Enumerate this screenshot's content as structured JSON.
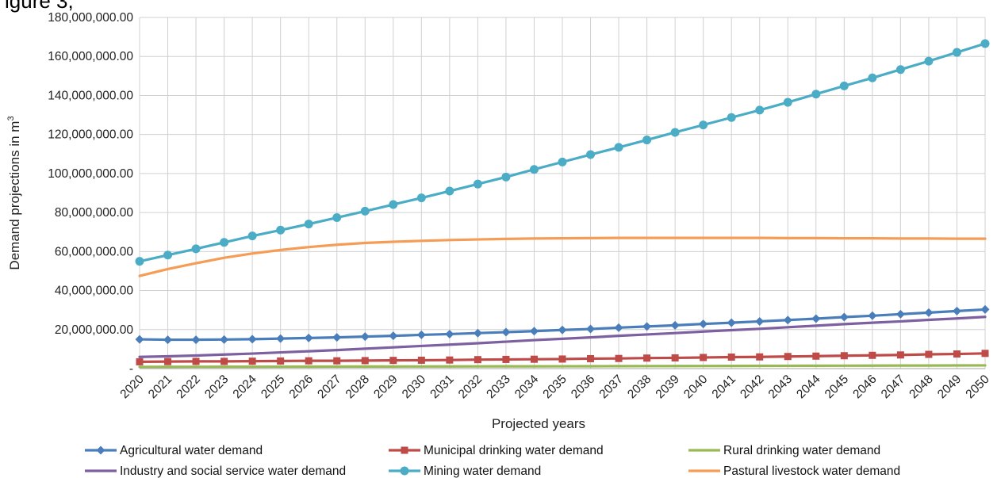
{
  "partial_title": "igure 3,",
  "chart_data": {
    "type": "line",
    "xlabel": "Projected years",
    "ylabel": "Demand projections in m³",
    "ylim": [
      0,
      180000000
    ],
    "y_ticks": [
      {
        "value": 0,
        "label": "-"
      },
      {
        "value": 20000000,
        "label": "20,000,000.00"
      },
      {
        "value": 40000000,
        "label": "40,000,000.00"
      },
      {
        "value": 60000000,
        "label": "60,000,000.00"
      },
      {
        "value": 80000000,
        "label": "80,000,000.00"
      },
      {
        "value": 100000000,
        "label": "100,000,000.00"
      },
      {
        "value": 120000000,
        "label": "120,000,000.00"
      },
      {
        "value": 140000000,
        "label": "140,000,000.00"
      },
      {
        "value": 160000000,
        "label": "160,000,000.00"
      },
      {
        "value": 180000000,
        "label": "180,000,000.00"
      }
    ],
    "grid": true,
    "legend_position": "bottom",
    "x": [
      2020,
      2021,
      2022,
      2023,
      2024,
      2025,
      2026,
      2027,
      2028,
      2029,
      2030,
      2031,
      2032,
      2033,
      2034,
      2035,
      2036,
      2037,
      2038,
      2039,
      2040,
      2041,
      2042,
      2043,
      2044,
      2045,
      2046,
      2047,
      2048,
      2049,
      2050
    ],
    "series": [
      {
        "name": "Agricultural water demand",
        "color": "#4a7ebb",
        "marker": "diamond",
        "values": [
          15000000,
          14800000,
          14800000,
          14900000,
          15100000,
          15400000,
          15700000,
          16000000,
          16400000,
          16800000,
          17300000,
          17700000,
          18200000,
          18700000,
          19200000,
          19800000,
          20300000,
          21000000,
          21600000,
          22200000,
          22900000,
          23500000,
          24200000,
          24900000,
          25600000,
          26400000,
          27100000,
          27900000,
          28700000,
          29500000,
          30300000
        ]
      },
      {
        "name": "Municipal drinking water demand",
        "color": "#be4b48",
        "marker": "square",
        "values": [
          3500000,
          3600000,
          3700000,
          3700000,
          3800000,
          3900000,
          4000000,
          4000000,
          4100000,
          4200000,
          4300000,
          4400000,
          4600000,
          4700000,
          4800000,
          4900000,
          5100000,
          5200000,
          5400000,
          5500000,
          5700000,
          5900000,
          6000000,
          6200000,
          6400000,
          6600000,
          6800000,
          7000000,
          7300000,
          7500000,
          7800000
        ]
      },
      {
        "name": "Rural drinking water demand",
        "color": "#98b954",
        "marker": "none",
        "values": [
          900000,
          920000,
          940000,
          960000,
          980000,
          1000000,
          1020000,
          1040000,
          1060000,
          1080000,
          1100000,
          1120000,
          1140000,
          1160000,
          1180000,
          1200000,
          1230000,
          1260000,
          1290000,
          1320000,
          1350000,
          1380000,
          1410000,
          1440000,
          1470000,
          1500000,
          1530000,
          1560000,
          1590000,
          1620000,
          1650000
        ]
      },
      {
        "name": "Industry and social service water demand",
        "color": "#7d60a0",
        "marker": "none",
        "values": [
          6000000,
          6300000,
          6700000,
          7200000,
          7700000,
          8300000,
          8900000,
          9500000,
          10200000,
          10900000,
          11600000,
          12300000,
          13000000,
          13800000,
          14600000,
          15300000,
          16000000,
          16800000,
          17500000,
          18200000,
          19000000,
          19700000,
          20400000,
          21200000,
          22000000,
          22800000,
          23500000,
          24200000,
          25000000,
          25700000,
          26500000
        ]
      },
      {
        "name": "Mining water demand",
        "color": "#4bacc6",
        "marker": "circle",
        "values": [
          55000000,
          58200000,
          61400000,
          64700000,
          68000000,
          71000000,
          74100000,
          77400000,
          80700000,
          84100000,
          87500000,
          91000000,
          94600000,
          98200000,
          102100000,
          105900000,
          109700000,
          113400000,
          117200000,
          121100000,
          124900000,
          128700000,
          132500000,
          136500000,
          140700000,
          144900000,
          149000000,
          153300000,
          157600000,
          162100000,
          166600000
        ]
      },
      {
        "name": "Pastural livestock water demand",
        "color": "#f59d56",
        "marker": "none",
        "values": [
          47500000,
          51000000,
          54000000,
          56800000,
          59000000,
          60800000,
          62300000,
          63500000,
          64400000,
          65000000,
          65500000,
          65900000,
          66200000,
          66500000,
          66700000,
          66800000,
          66900000,
          67000000,
          67000000,
          67000000,
          67000000,
          67000000,
          67000000,
          66900000,
          66900000,
          66800000,
          66800000,
          66700000,
          66700000,
          66600000,
          66600000
        ]
      }
    ]
  }
}
